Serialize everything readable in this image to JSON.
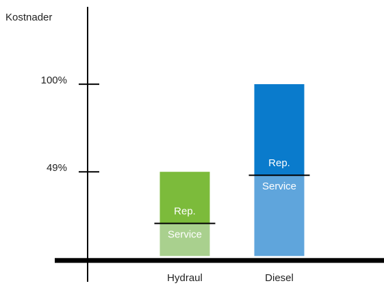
{
  "chart_data": {
    "type": "stacked_bar",
    "y_axis_label": "Kostnader",
    "categories": [
      "Hydraul",
      "Diesel"
    ],
    "series": [
      {
        "name": "Service",
        "colors": [
          "#a9d08e",
          "#5fa5dc"
        ],
        "values": [
          19,
          47
        ]
      },
      {
        "name": "Rep.",
        "colors": [
          "#7cbb3b",
          "#0a7bcc"
        ],
        "values": [
          30,
          53
        ]
      }
    ],
    "ylim": [
      -15,
      145
    ],
    "yticks": [
      {
        "value": 49,
        "label": "49%"
      },
      {
        "value": 100,
        "label": "100%"
      }
    ]
  }
}
